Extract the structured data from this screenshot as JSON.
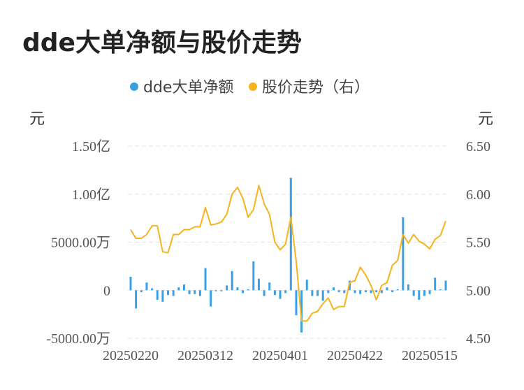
{
  "title": "dde大单净额与股价走势",
  "chart_data": {
    "type": "bar+line",
    "legend": [
      {
        "name": "dde大单净额",
        "color": "#3aa0e6"
      },
      {
        "name": "股价走势（右）",
        "color": "#f5b31d"
      }
    ],
    "left_unit": "元",
    "right_unit": "元",
    "left_ticks": [
      "-5000.00万",
      "0",
      "5000.00万",
      "1.00亿",
      "1.50亿"
    ],
    "right_ticks": [
      "4.50",
      "5.00",
      "5.50",
      "6.00",
      "6.50"
    ],
    "x_tick_labels": [
      "20250220",
      "20250312",
      "20250401",
      "20250422",
      "20250515"
    ],
    "ylim_left": [
      -50000000,
      150000000
    ],
    "ylim_right": [
      4.5,
      6.5
    ],
    "grid": true,
    "series": [
      {
        "name": "dde大单净额",
        "type": "bar",
        "values": [
          14000000,
          -19000000,
          -2000000,
          8000000,
          2000000,
          -10000000,
          -12000000,
          -5000000,
          -6000000,
          3000000,
          6000000,
          -4000000,
          -4000000,
          -6000000,
          23000000,
          -17000000,
          -1000000,
          -1000000,
          5000000,
          20000000,
          3000000,
          -3000000,
          1000000,
          30000000,
          12000000,
          -6000000,
          8000000,
          -5000000,
          -9000000,
          -3000000,
          117000000,
          -26000000,
          -44000000,
          11000000,
          -6000000,
          -6000000,
          -11000000,
          -3000000,
          3000000,
          -2000000,
          -3000000,
          10000000,
          -3000000,
          -4000000,
          -2000000,
          -3000000,
          -2000000,
          -3000000,
          3000000,
          -2000000,
          1000000,
          76000000,
          6000000,
          -6000000,
          -10000000,
          -6000000,
          -4000000,
          13000000,
          1000000,
          10000000
        ]
      },
      {
        "name": "股价走势（右）",
        "type": "line",
        "values": [
          5.63,
          5.54,
          5.54,
          5.58,
          5.67,
          5.67,
          5.4,
          5.39,
          5.58,
          5.58,
          5.63,
          5.63,
          5.66,
          5.66,
          5.86,
          5.68,
          5.69,
          5.71,
          5.79,
          6.0,
          6.07,
          5.96,
          5.76,
          5.84,
          6.09,
          5.9,
          5.79,
          5.5,
          5.42,
          5.48,
          5.76,
          5.3,
          4.68,
          4.68,
          4.76,
          4.78,
          4.86,
          4.92,
          4.8,
          4.83,
          4.83,
          5.08,
          5.1,
          5.24,
          5.16,
          5.05,
          4.9,
          5.05,
          5.08,
          5.26,
          5.31,
          5.58,
          5.49,
          5.58,
          5.51,
          5.48,
          5.43,
          5.53,
          5.57,
          5.72
        ]
      }
    ]
  }
}
